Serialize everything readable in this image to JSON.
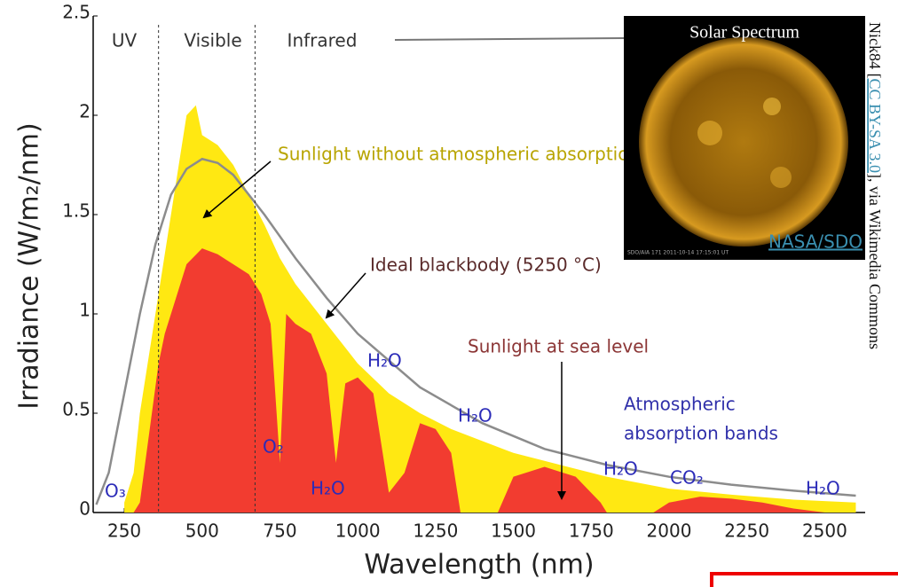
{
  "chart_data": {
    "type": "area",
    "title": "Solar Spectrum",
    "xlabel": "Wavelength (nm)",
    "ylabel": "Irradiance (W/m₂/nm)",
    "xlim": [
      150,
      2630
    ],
    "ylim": [
      0,
      2.5
    ],
    "xticks": [
      250,
      500,
      750,
      1000,
      1250,
      1500,
      1750,
      2000,
      2250,
      2500
    ],
    "yticks": [
      0,
      0.5,
      1,
      1.5,
      2,
      2.5
    ],
    "band_edges": [
      360,
      670
    ],
    "regions": [
      "UV",
      "Visible",
      "Infrared"
    ],
    "series": [
      {
        "name": "Sunlight without atmospheric absorption",
        "kind": "area",
        "color": "#ffe812",
        "x": [
          250,
          280,
          300,
          350,
          400,
          430,
          450,
          480,
          500,
          550,
          600,
          650,
          700,
          750,
          800,
          900,
          1000,
          1100,
          1200,
          1300,
          1400,
          1500,
          1600,
          1700,
          1800,
          2000,
          2200,
          2400,
          2600
        ],
        "values": [
          0.05,
          0.2,
          0.5,
          1.0,
          1.5,
          1.8,
          2.0,
          2.05,
          1.9,
          1.85,
          1.75,
          1.6,
          1.45,
          1.28,
          1.15,
          0.95,
          0.75,
          0.6,
          0.5,
          0.42,
          0.36,
          0.3,
          0.26,
          0.22,
          0.18,
          0.12,
          0.09,
          0.065,
          0.05
        ]
      },
      {
        "name": "Sunlight at sea level",
        "kind": "area",
        "color": "#f23c30",
        "x": [
          280,
          300,
          330,
          360,
          380,
          400,
          450,
          500,
          550,
          600,
          650,
          690,
          720,
          750,
          770,
          800,
          850,
          900,
          930,
          960,
          1000,
          1050,
          1100,
          1150,
          1200,
          1250,
          1300,
          1330,
          1450,
          1500,
          1600,
          1700,
          1780,
          1800,
          1950,
          2000,
          2100,
          2200,
          2300,
          2400,
          2500,
          2600
        ],
        "values": [
          0,
          0.05,
          0.4,
          0.75,
          0.9,
          1.0,
          1.25,
          1.33,
          1.3,
          1.25,
          1.2,
          1.1,
          0.95,
          0.25,
          1.0,
          0.95,
          0.9,
          0.7,
          0.25,
          0.65,
          0.68,
          0.6,
          0.1,
          0.2,
          0.45,
          0.42,
          0.3,
          0,
          0,
          0.18,
          0.23,
          0.18,
          0.05,
          0,
          0,
          0.05,
          0.08,
          0.07,
          0.05,
          0.02,
          0,
          0
        ]
      },
      {
        "name": "Ideal blackbody (5250 °C)",
        "kind": "line",
        "color": "#8c8c8c",
        "x": [
          160,
          200,
          250,
          300,
          350,
          400,
          450,
          500,
          550,
          600,
          700,
          800,
          900,
          1000,
          1200,
          1400,
          1600,
          1800,
          2000,
          2200,
          2400,
          2600
        ],
        "values": [
          0.04,
          0.2,
          0.6,
          1.0,
          1.35,
          1.6,
          1.73,
          1.78,
          1.76,
          1.7,
          1.5,
          1.28,
          1.08,
          0.9,
          0.63,
          0.45,
          0.32,
          0.24,
          0.18,
          0.14,
          0.11,
          0.085
        ]
      }
    ],
    "absorption_title": [
      "Atmospheric",
      "absorption bands"
    ],
    "absorption_labels": [
      "O₃",
      "O₂",
      "H₂O",
      "H₂O",
      "H₂O",
      "H₂O",
      "CO₂",
      "H₂O"
    ],
    "inset": {
      "caption": "NASA/SDO",
      "stamp": "SDO/AIA 171  2011-10-14 17:15:01 UT"
    },
    "credit": {
      "author": "Nick84 [",
      "license": "CC BY-SA 3.0",
      "source": "], via Wikimedia Commons"
    }
  }
}
